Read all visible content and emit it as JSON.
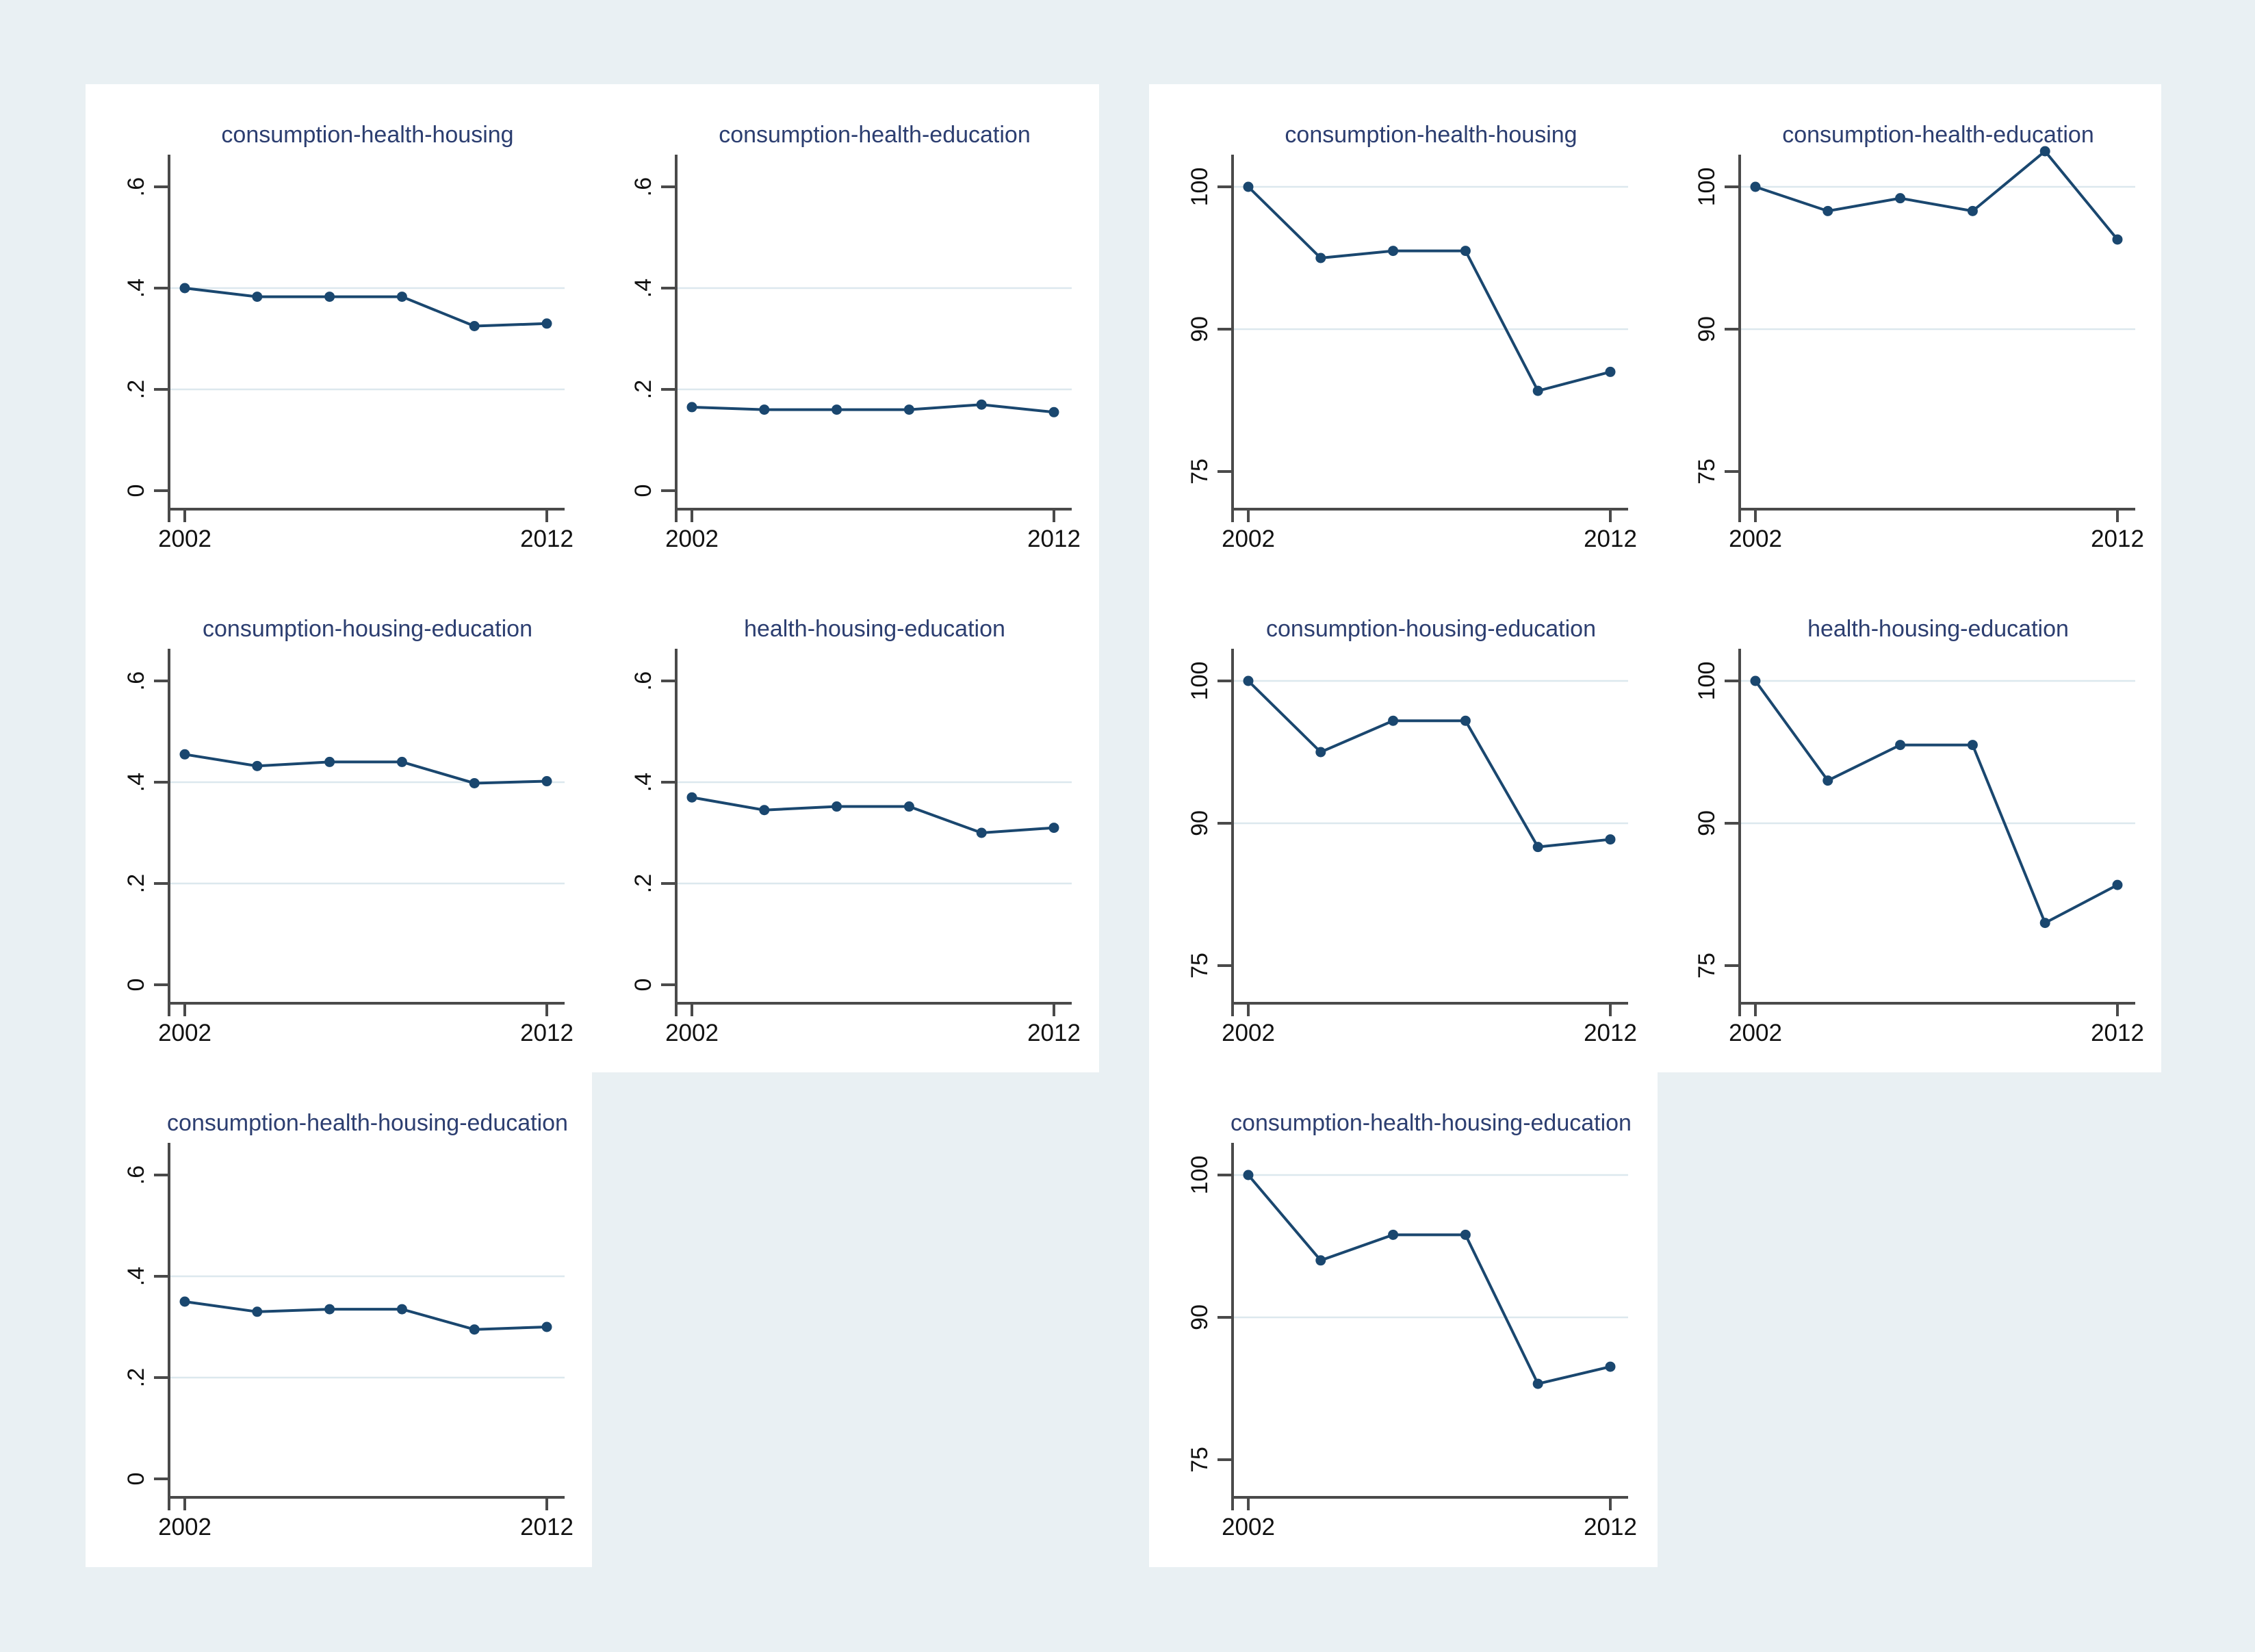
{
  "page": {
    "background_color": "#e9f0f3",
    "panel_color": "#ffffff",
    "title_color": "#2c3e70",
    "line_color": "#1a476f",
    "grid_color": "#dce8ee",
    "axis_color": "#4a4a4a",
    "tick_text_color": "#111111"
  },
  "axes": {
    "left": {
      "ytick_labels": [
        ".6",
        ".4",
        ".2",
        "0"
      ],
      "ytick_values": [
        0.6,
        0.4,
        0.2,
        0
      ],
      "grid_values": [
        0.4,
        0.2
      ],
      "xtick_labels": [
        "2002",
        "2012"
      ],
      "xtick_values": [
        2002,
        2012
      ],
      "ylim": [
        0,
        0.65
      ]
    },
    "right": {
      "ytick_labels": [
        "100",
        "90",
        "75"
      ],
      "ytick_values": [
        100,
        90,
        75
      ],
      "grid_values": [
        100,
        90
      ],
      "xtick_labels": [
        "2002",
        "2012"
      ],
      "xtick_values": [
        2002,
        2012
      ],
      "ylim": [
        73,
        103
      ]
    }
  },
  "chart_data": [
    {
      "type": "line",
      "panel": "left",
      "title": "consumption-health-housing",
      "x": [
        2002,
        2004,
        2006,
        2008,
        2010,
        2012
      ],
      "values": [
        0.4,
        0.383,
        0.383,
        0.383,
        0.325,
        0.33
      ],
      "xlabel": "",
      "ylabel": "",
      "ylim": [
        0,
        0.65
      ],
      "legend": "none",
      "grid": "horizontal"
    },
    {
      "type": "line",
      "panel": "left",
      "title": "consumption-health-education",
      "x": [
        2002,
        2004,
        2006,
        2008,
        2010,
        2012
      ],
      "values": [
        0.165,
        0.16,
        0.16,
        0.16,
        0.17,
        0.155
      ],
      "xlabel": "",
      "ylabel": "",
      "ylim": [
        0,
        0.65
      ],
      "legend": "none",
      "grid": "horizontal"
    },
    {
      "type": "line",
      "panel": "left",
      "title": "consumption-housing-education",
      "x": [
        2002,
        2004,
        2006,
        2008,
        2010,
        2012
      ],
      "values": [
        0.455,
        0.432,
        0.44,
        0.44,
        0.398,
        0.402
      ],
      "xlabel": "",
      "ylabel": "",
      "ylim": [
        0,
        0.65
      ],
      "legend": "none",
      "grid": "horizontal"
    },
    {
      "type": "line",
      "panel": "left",
      "title": "health-housing-education",
      "x": [
        2002,
        2004,
        2006,
        2008,
        2010,
        2012
      ],
      "values": [
        0.37,
        0.345,
        0.352,
        0.352,
        0.3,
        0.31
      ],
      "xlabel": "",
      "ylabel": "",
      "ylim": [
        0,
        0.65
      ],
      "legend": "none",
      "grid": "horizontal"
    },
    {
      "type": "line",
      "panel": "left",
      "title": "consumption-health-housing-education",
      "x": [
        2002,
        2004,
        2006,
        2008,
        2010,
        2012
      ],
      "values": [
        0.35,
        0.33,
        0.335,
        0.335,
        0.295,
        0.3
      ],
      "xlabel": "",
      "ylabel": "",
      "ylim": [
        0,
        0.65
      ],
      "legend": "none",
      "grid": "horizontal"
    },
    {
      "type": "line",
      "panel": "right",
      "title": "consumption-health-housing",
      "x": [
        2002,
        2004,
        2006,
        2008,
        2010,
        2012
      ],
      "values": [
        100,
        95,
        95.5,
        95.5,
        83.5,
        85.5
      ],
      "xlabel": "",
      "ylabel": "",
      "ylim": [
        73,
        103
      ],
      "legend": "none",
      "grid": "horizontal"
    },
    {
      "type": "line",
      "panel": "right",
      "title": "consumption-health-education",
      "x": [
        2002,
        2004,
        2006,
        2008,
        2010,
        2012
      ],
      "values": [
        100,
        98.3,
        99.2,
        98.3,
        102.5,
        96.3
      ],
      "xlabel": "",
      "ylabel": "",
      "ylim": [
        73,
        103
      ],
      "legend": "none",
      "grid": "horizontal"
    },
    {
      "type": "line",
      "panel": "right",
      "title": "consumption-housing-education",
      "x": [
        2002,
        2004,
        2006,
        2008,
        2010,
        2012
      ],
      "values": [
        100,
        95,
        97.2,
        97.2,
        87.5,
        88.3
      ],
      "xlabel": "",
      "ylabel": "",
      "ylim": [
        73,
        103
      ],
      "legend": "none",
      "grid": "horizontal"
    },
    {
      "type": "line",
      "panel": "right",
      "title": "health-housing-education",
      "x": [
        2002,
        2004,
        2006,
        2008,
        2010,
        2012
      ],
      "values": [
        100,
        93,
        95.5,
        95.5,
        79.5,
        83.5
      ],
      "xlabel": "",
      "ylabel": "",
      "ylim": [
        73,
        103
      ],
      "legend": "none",
      "grid": "horizontal"
    },
    {
      "type": "line",
      "panel": "right",
      "title": "consumption-health-housing-education",
      "x": [
        2002,
        2004,
        2006,
        2008,
        2010,
        2012
      ],
      "values": [
        100,
        94,
        95.8,
        95.8,
        83,
        84.8
      ],
      "xlabel": "",
      "ylabel": "",
      "ylim": [
        73,
        103
      ],
      "legend": "none",
      "grid": "horizontal"
    }
  ]
}
